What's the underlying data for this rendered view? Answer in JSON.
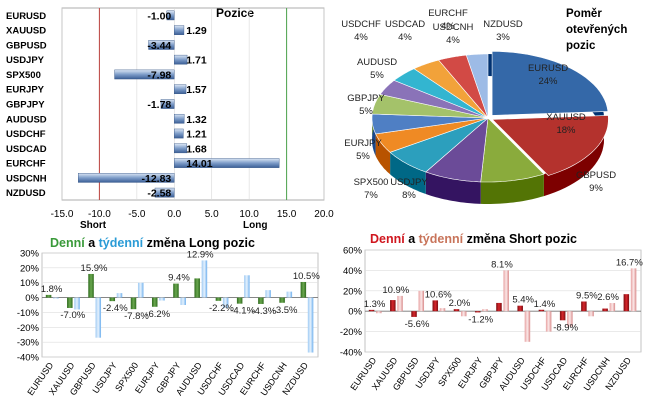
{
  "colors": {
    "bar_blue": "#4a6fa5",
    "bar_blue_light": "#bcd0ea",
    "short_line": "#c0504d",
    "long_line": "#5aa85a",
    "grid": "#b5b5b5",
    "green": "#4f8a35",
    "green_light": "#b9d7a8",
    "blue": "#5aa3e8",
    "blue_light": "#cde4fa",
    "red": "#b3131b",
    "red_light": "#eeb6b6",
    "word_green": "#3a9a3a",
    "word_blue": "#2a9bd6",
    "word_red": "#d0161e"
  },
  "positions": {
    "title": "Pozice",
    "short_label": "Short",
    "long_label": "Long",
    "short_line_at": -10,
    "long_line_at": 15
  },
  "pie": {
    "title": "Poměr otevřených pozic"
  },
  "long_panel": {
    "title_parts": [
      "Denní",
      " a ",
      "týdenní",
      " změna Long pozic"
    ]
  },
  "short_panel": {
    "title_parts": [
      "Denní",
      " a ",
      "týdenní",
      " změna Short pozic"
    ]
  },
  "chart_data": [
    {
      "type": "bar",
      "orientation": "horizontal",
      "title": "Pozice",
      "categories": [
        "EURUSD",
        "XAUUSD",
        "GBPUSD",
        "USDJPY",
        "SPX500",
        "EURJPY",
        "GBPJPY",
        "AUDUSD",
        "USDCHF",
        "USDCAD",
        "EURCHF",
        "USDCNH",
        "NZDUSD"
      ],
      "values": [
        -1.0,
        1.29,
        -3.44,
        1.71,
        -7.98,
        1.57,
        -1.78,
        1.32,
        1.21,
        1.68,
        14.01,
        -12.83,
        -2.58
      ],
      "labels": [
        "-1.00",
        "1.29",
        "-3.44",
        "1.71",
        "-7.98",
        "1.57",
        "-1.78",
        "1.32",
        "1.21",
        "1.68",
        "14.01",
        "-12.83",
        "-2.58"
      ],
      "xlim": [
        -15,
        20
      ],
      "xticks": [
        "-15.0",
        "-10.0",
        "-5.0",
        "0.0",
        "5.0",
        "10.0",
        "15.0",
        "20.0"
      ],
      "grid": true
    },
    {
      "type": "pie",
      "title": "Poměr otevřených pozic",
      "slices": [
        {
          "label": "EURUSD",
          "pct": "24%",
          "value": 24,
          "color": "#3468a8"
        },
        {
          "label": "XAUUSD",
          "pct": "18%",
          "value": 18,
          "color": "#b4322d"
        },
        {
          "label": "GBPUSD",
          "pct": "9%",
          "value": 9,
          "color": "#8aab3c"
        },
        {
          "label": "USDJPY",
          "pct": "8%",
          "value": 8,
          "color": "#6b4b98"
        },
        {
          "label": "SPX500",
          "pct": "7%",
          "value": 7,
          "color": "#2c9fbd"
        },
        {
          "label": "EURJPY",
          "pct": "5%",
          "value": 5,
          "color": "#ef8a24"
        },
        {
          "label": "GBPJPY",
          "pct": "5%",
          "value": 5,
          "color": "#4f7fc4"
        },
        {
          "label": "AUDUSD",
          "pct": "5%",
          "value": 5,
          "color": "#a4c26a"
        },
        {
          "label": "USDCHF",
          "pct": "4%",
          "value": 4,
          "color": "#8a73b8"
        },
        {
          "label": "USDCAD",
          "pct": "4%",
          "value": 4,
          "color": "#33b5d0"
        },
        {
          "label": "EURCHF",
          "pct": "4%",
          "value": 4,
          "color": "#f2a23a"
        },
        {
          "label": "USDCNH",
          "pct": "4%",
          "value": 4,
          "color": "#d24a45"
        },
        {
          "label": "NZDUSD",
          "pct": "3%",
          "value": 3,
          "color": "#9dbbe6"
        }
      ]
    },
    {
      "type": "bar",
      "title": "Denní a týdenní změna Long pozic",
      "categories": [
        "EURUSD",
        "XAUUSD",
        "GBPUSD",
        "USDJPY",
        "SPX500",
        "EURJPY",
        "GBPJPY",
        "AUDUSD",
        "USDCHF",
        "USDCAD",
        "EURCHF",
        "USDCNH",
        "NZDUSD"
      ],
      "series": [
        {
          "name": "Denní",
          "values": [
            1.8,
            -7.0,
            15.9,
            -2.4,
            -7.8,
            -6.2,
            9.4,
            12.9,
            -2.2,
            -4.1,
            -4.3,
            -3.5,
            10.5
          ]
        },
        {
          "name": "týdenní",
          "values": [
            -0.5,
            -8.0,
            -27.0,
            3.0,
            10.0,
            -2.0,
            -5.0,
            25.0,
            -7.0,
            15.0,
            5.0,
            4.0,
            -37.0
          ]
        }
      ],
      "labels": [
        "1.8%",
        "-7.0%",
        "15.9%",
        "-2.4%",
        "-7.8%",
        "-6.2%",
        "9.4%",
        "12.9%",
        "-2.2%",
        "-4.1%",
        "-4.3%",
        "-3.5%",
        "10.5%"
      ],
      "ylim": [
        -40,
        30
      ],
      "yticks": [
        "30%",
        "20%",
        "10%",
        "0%",
        "-10%",
        "-20%",
        "-30%",
        "-40%"
      ],
      "grid": true
    },
    {
      "type": "bar",
      "title": "Denní a týdenní změna Short pozic",
      "categories": [
        "EURUSD",
        "XAUUSD",
        "GBPUSD",
        "USDJPY",
        "SPX500",
        "EURJPY",
        "GBPJPY",
        "AUDUSD",
        "USDCHF",
        "USDCAD",
        "EURCHF",
        "USDCNH",
        "NZDUSD"
      ],
      "series": [
        {
          "name": "Denní",
          "values": [
            1.3,
            10.9,
            -5.6,
            10.6,
            2.0,
            -1.2,
            8.1,
            5.4,
            1.4,
            -8.9,
            9.5,
            2.6,
            16.7
          ]
        },
        {
          "name": "týdenní",
          "values": [
            -2.0,
            15.0,
            20.0,
            3.0,
            -5.0,
            2.0,
            40.0,
            -30.0,
            -20.0,
            -15.0,
            -5.0,
            8.0,
            42.0
          ]
        }
      ],
      "labels": [
        "1.3%",
        "10.9%",
        "-5.6%",
        "10.6%",
        "2.0%",
        "-1.2%",
        "8.1%",
        "5.4%",
        "1.4%",
        "-8.9%",
        "9.5%",
        "2.6%",
        "16.7%"
      ],
      "ylim": [
        -40,
        60
      ],
      "yticks": [
        "60%",
        "40%",
        "20%",
        "0%",
        "-20%",
        "-40%"
      ],
      "grid": true
    }
  ]
}
